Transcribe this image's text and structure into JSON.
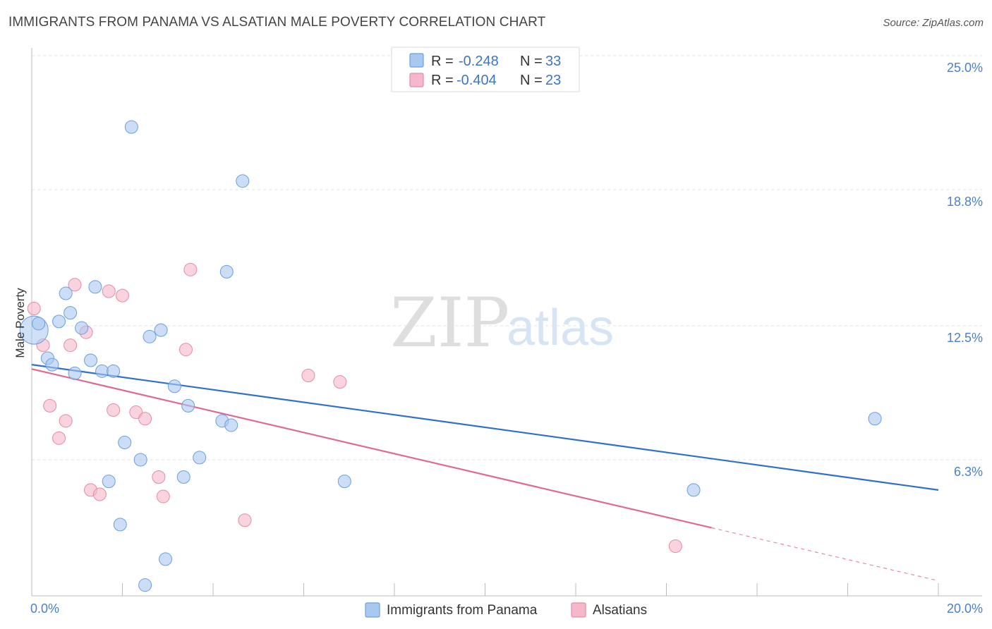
{
  "title": "IMMIGRANTS FROM PANAMA VS ALSATIAN MALE POVERTY CORRELATION CHART",
  "source": "Source: ZipAtlas.com",
  "watermark": {
    "part1": "ZIP",
    "part2": "atlas"
  },
  "legend": [
    {
      "r_label": "R =",
      "r_value": "-0.248",
      "n_label": "N =",
      "n_value": "33",
      "color": "#a9c8f0"
    },
    {
      "r_label": "R =",
      "r_value": "-0.404",
      "n_label": "N =",
      "n_value": "23",
      "color": "#f5b8ca"
    }
  ],
  "chart_data": {
    "type": "scatter",
    "title": "IMMIGRANTS FROM PANAMA VS ALSATIAN MALE POVERTY CORRELATION CHART",
    "xlabel": "",
    "ylabel": "Male Poverty",
    "xlim": [
      0,
      20
    ],
    "ylim": [
      0,
      25.0
    ],
    "x_tick_labels": [
      {
        "v": 0,
        "label": "0.0%"
      },
      {
        "v": 20,
        "label": "20.0%"
      }
    ],
    "y_tick_labels": [
      {
        "v": 6.3,
        "label": "6.3%"
      },
      {
        "v": 12.5,
        "label": "12.5%"
      },
      {
        "v": 18.8,
        "label": "18.8%"
      },
      {
        "v": 25.0,
        "label": "25.0%"
      }
    ],
    "series": [
      {
        "name": "Immigrants from Panama",
        "color": "#a9c8f0",
        "stroke": "#6b9ee0",
        "line_color": "#2f6fd0",
        "trend": {
          "x0": 0,
          "y0": 10.7,
          "x1": 20,
          "y1": 4.9,
          "solid_to": 20
        },
        "points": [
          {
            "x": 0.05,
            "y": 12.3,
            "big": true
          },
          {
            "x": 0.15,
            "y": 12.6
          },
          {
            "x": 0.35,
            "y": 11.0
          },
          {
            "x": 0.45,
            "y": 10.7
          },
          {
            "x": 0.6,
            "y": 12.7
          },
          {
            "x": 0.75,
            "y": 14.0
          },
          {
            "x": 0.85,
            "y": 13.1
          },
          {
            "x": 0.95,
            "y": 10.3
          },
          {
            "x": 1.1,
            "y": 12.4
          },
          {
            "x": 1.3,
            "y": 10.9
          },
          {
            "x": 1.4,
            "y": 14.3
          },
          {
            "x": 1.55,
            "y": 10.4
          },
          {
            "x": 1.7,
            "y": 5.3
          },
          {
            "x": 1.8,
            "y": 10.4
          },
          {
            "x": 1.95,
            "y": 3.3
          },
          {
            "x": 2.05,
            "y": 7.1
          },
          {
            "x": 2.2,
            "y": 21.7
          },
          {
            "x": 2.4,
            "y": 6.3
          },
          {
            "x": 2.5,
            "y": 0.5
          },
          {
            "x": 2.6,
            "y": 12.0
          },
          {
            "x": 2.85,
            "y": 12.3
          },
          {
            "x": 2.95,
            "y": 1.7
          },
          {
            "x": 3.15,
            "y": 9.7
          },
          {
            "x": 3.35,
            "y": 5.5
          },
          {
            "x": 3.45,
            "y": 8.8
          },
          {
            "x": 3.7,
            "y": 6.4
          },
          {
            "x": 4.2,
            "y": 8.1
          },
          {
            "x": 4.4,
            "y": 7.9
          },
          {
            "x": 4.3,
            "y": 15.0
          },
          {
            "x": 4.65,
            "y": 19.2
          },
          {
            "x": 6.9,
            "y": 5.3
          },
          {
            "x": 14.6,
            "y": 4.9
          },
          {
            "x": 18.6,
            "y": 8.2
          }
        ]
      },
      {
        "name": "Alsatians",
        "color": "#f5b8ca",
        "stroke": "#e58aa6",
        "line_color": "#e06a93",
        "trend": {
          "x0": 0,
          "y0": 10.5,
          "x1": 20,
          "y1": 0.7,
          "solid_to": 15.0
        },
        "points": [
          {
            "x": 0.05,
            "y": 13.3
          },
          {
            "x": 0.25,
            "y": 11.6
          },
          {
            "x": 0.4,
            "y": 8.8
          },
          {
            "x": 0.6,
            "y": 7.3
          },
          {
            "x": 0.75,
            "y": 8.1
          },
          {
            "x": 0.85,
            "y": 11.6
          },
          {
            "x": 0.95,
            "y": 14.4
          },
          {
            "x": 1.2,
            "y": 12.2
          },
          {
            "x": 1.3,
            "y": 4.9
          },
          {
            "x": 1.5,
            "y": 4.7
          },
          {
            "x": 1.7,
            "y": 14.1
          },
          {
            "x": 1.8,
            "y": 8.6
          },
          {
            "x": 2.0,
            "y": 13.9
          },
          {
            "x": 2.3,
            "y": 8.5
          },
          {
            "x": 2.5,
            "y": 8.2
          },
          {
            "x": 2.8,
            "y": 5.5
          },
          {
            "x": 2.9,
            "y": 4.6
          },
          {
            "x": 3.4,
            "y": 11.4
          },
          {
            "x": 3.5,
            "y": 15.1
          },
          {
            "x": 4.7,
            "y": 3.5
          },
          {
            "x": 6.1,
            "y": 10.2
          },
          {
            "x": 6.8,
            "y": 9.9
          },
          {
            "x": 14.2,
            "y": 2.3
          }
        ]
      }
    ]
  }
}
